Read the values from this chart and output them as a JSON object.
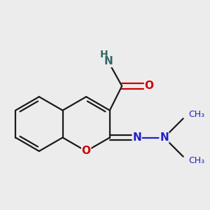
{
  "bg_color": "#ececec",
  "bond_color": "#1a1a1a",
  "N_color": "#2020cc",
  "O_color": "#cc0000",
  "NH_color": "#336666",
  "line_width": 1.6,
  "font_size": 11,
  "fig_size": [
    3.0,
    3.0
  ],
  "dpi": 100,
  "xlim": [
    -2.5,
    4.5
  ],
  "ylim": [
    -2.5,
    3.5
  ]
}
